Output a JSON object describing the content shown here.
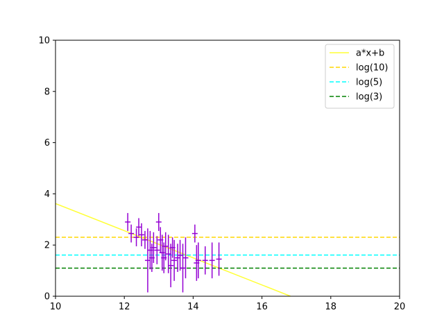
{
  "chart_data": {
    "type": "scatter",
    "title": "",
    "xlabel": "",
    "ylabel": "",
    "xlim": [
      10,
      20
    ],
    "ylim": [
      0,
      10
    ],
    "xticks": [
      "10",
      "12",
      "14",
      "16",
      "18",
      "20"
    ],
    "yticks": [
      "0",
      "2",
      "4",
      "6",
      "8",
      "10"
    ],
    "grid": false,
    "legend_position": "top-right",
    "lines": [
      {
        "name": "a*x+b",
        "kind": "fit",
        "style": "solid",
        "color": "#ffff33",
        "x": [
          10,
          16.83
        ],
        "y": [
          3.62,
          0
        ]
      },
      {
        "name": "log(10)",
        "kind": "hline",
        "style": "dashed",
        "color": "#ffd700",
        "y": 2.303
      },
      {
        "name": "log(5)",
        "kind": "hline",
        "style": "dashed",
        "color": "#00ffff",
        "y": 1.609
      },
      {
        "name": "log(3)",
        "kind": "hline",
        "style": "dashed",
        "color": "#008000",
        "y": 1.099
      }
    ],
    "points_color": "#9400d3",
    "points": [
      {
        "x": 12.1,
        "y": 2.9,
        "err": 0.35
      },
      {
        "x": 12.2,
        "y": 2.45,
        "err": 0.35
      },
      {
        "x": 12.35,
        "y": 2.3,
        "err": 0.35
      },
      {
        "x": 12.42,
        "y": 2.7,
        "err": 0.35
      },
      {
        "x": 12.5,
        "y": 2.4,
        "err": 0.45
      },
      {
        "x": 12.6,
        "y": 2.2,
        "err": 0.35
      },
      {
        "x": 12.68,
        "y": 1.4,
        "err": 1.25
      },
      {
        "x": 12.75,
        "y": 1.8,
        "err": 0.75
      },
      {
        "x": 12.8,
        "y": 1.5,
        "err": 0.55
      },
      {
        "x": 12.85,
        "y": 1.9,
        "err": 0.6
      },
      {
        "x": 12.95,
        "y": 1.8,
        "err": 0.55
      },
      {
        "x": 13.0,
        "y": 2.9,
        "err": 0.35
      },
      {
        "x": 13.05,
        "y": 2.2,
        "err": 0.5
      },
      {
        "x": 13.1,
        "y": 1.7,
        "err": 0.7
      },
      {
        "x": 13.15,
        "y": 1.5,
        "err": 0.6
      },
      {
        "x": 13.2,
        "y": 1.95,
        "err": 0.55
      },
      {
        "x": 13.28,
        "y": 1.65,
        "err": 0.75
      },
      {
        "x": 13.35,
        "y": 1.2,
        "err": 0.85
      },
      {
        "x": 13.4,
        "y": 1.9,
        "err": 0.4
      },
      {
        "x": 13.45,
        "y": 1.4,
        "err": 0.8
      },
      {
        "x": 13.55,
        "y": 1.5,
        "err": 0.55
      },
      {
        "x": 13.62,
        "y": 1.6,
        "err": 0.6
      },
      {
        "x": 13.7,
        "y": 1.1,
        "err": 0.95
      },
      {
        "x": 13.78,
        "y": 1.5,
        "err": 0.8
      },
      {
        "x": 14.05,
        "y": 2.45,
        "err": 0.35
      },
      {
        "x": 14.1,
        "y": 1.3,
        "err": 0.7
      },
      {
        "x": 14.15,
        "y": 1.4,
        "err": 0.7
      },
      {
        "x": 14.35,
        "y": 1.4,
        "err": 0.55
      },
      {
        "x": 14.55,
        "y": 1.4,
        "err": 0.7
      },
      {
        "x": 14.75,
        "y": 1.45,
        "err": 0.65
      }
    ]
  }
}
